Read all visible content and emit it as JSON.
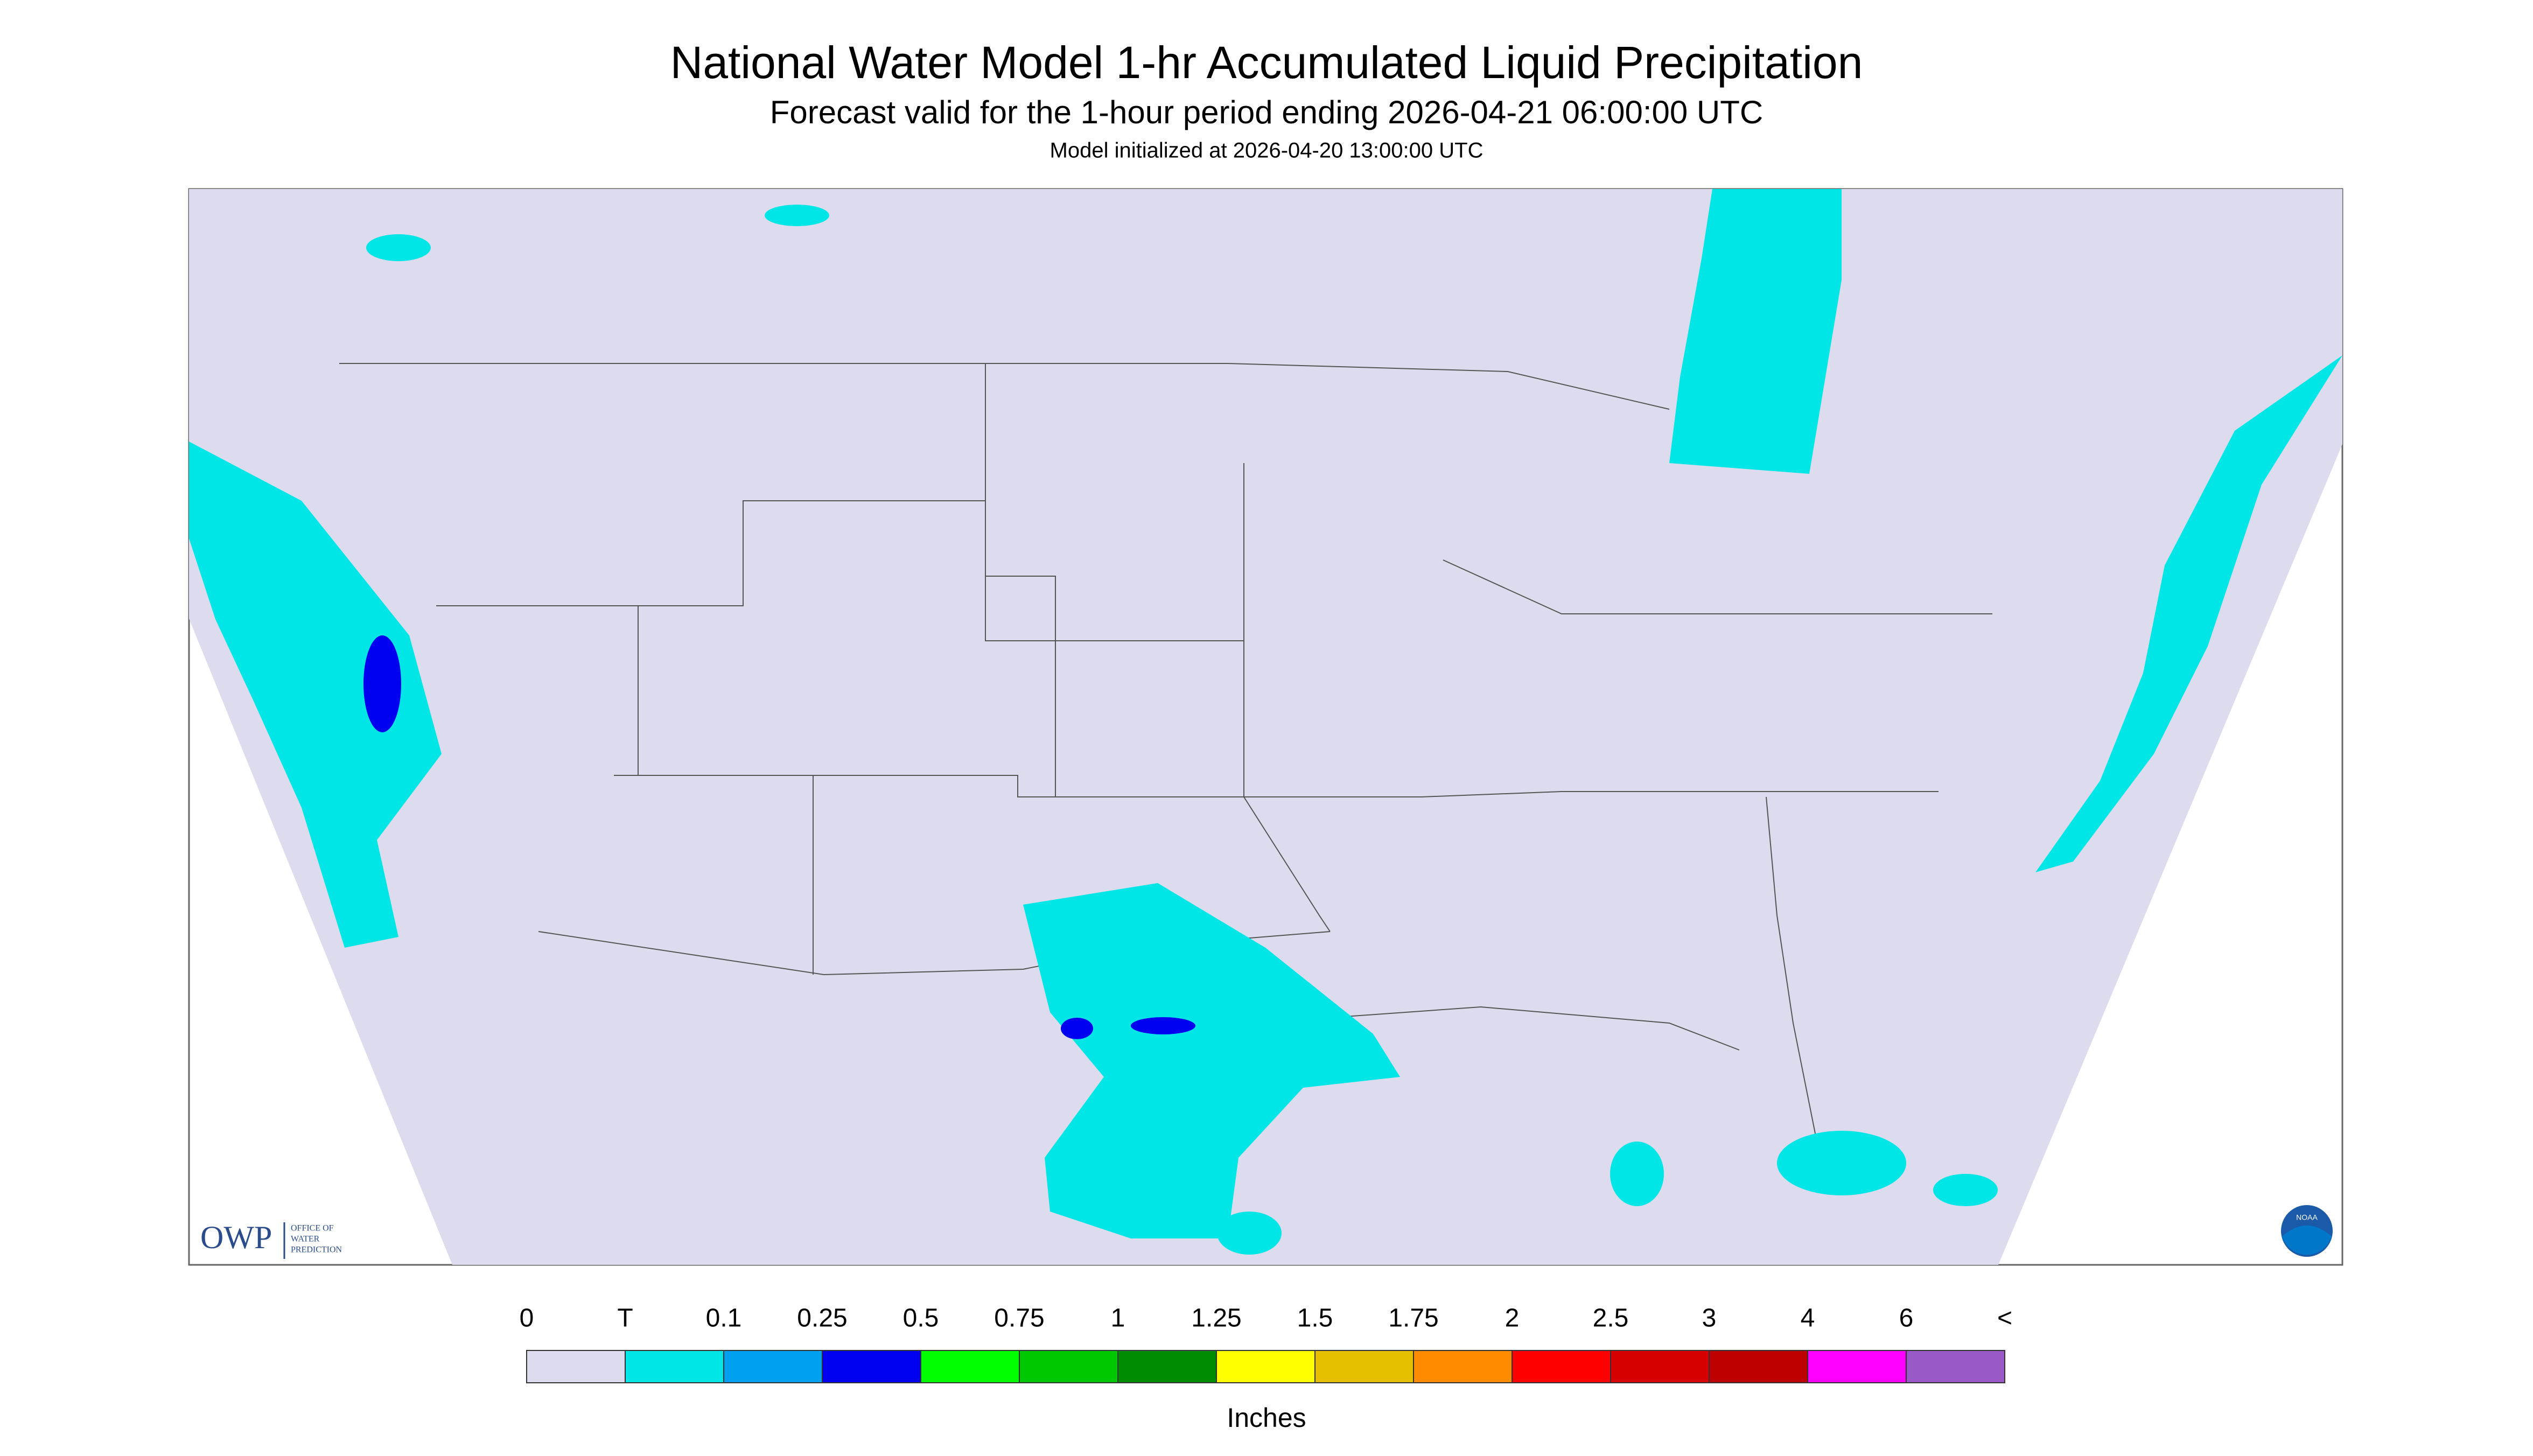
{
  "title": "National Water Model 1-hr Accumulated Liquid Precipitation",
  "subtitle": "Forecast valid for the 1-hour period ending 2026-04-21 06:00:00 UTC",
  "note": "Model initialized at 2026-04-20 13:00:00 UTC",
  "legend": {
    "labels": [
      "0",
      "T",
      "0.1",
      "0.25",
      "0.5",
      "0.75",
      "1",
      "1.25",
      "1.5",
      "1.75",
      "2",
      "2.5",
      "3",
      "4",
      "6",
      "<"
    ],
    "colors": [
      "#dcdcee",
      "#00e6e6",
      "#00a0f0",
      "#0000f0",
      "#00ff00",
      "#00c800",
      "#008c00",
      "#ffff00",
      "#e6be00",
      "#ff8c00",
      "#ff0000",
      "#d70000",
      "#be0000",
      "#ff00ff",
      "#9b59c8"
    ],
    "unit": "Inches"
  },
  "logo": {
    "owp": "OWP",
    "lines": [
      "OFFICE OF",
      "WATER",
      "PREDICTION"
    ],
    "noaa": "NOAA"
  }
}
